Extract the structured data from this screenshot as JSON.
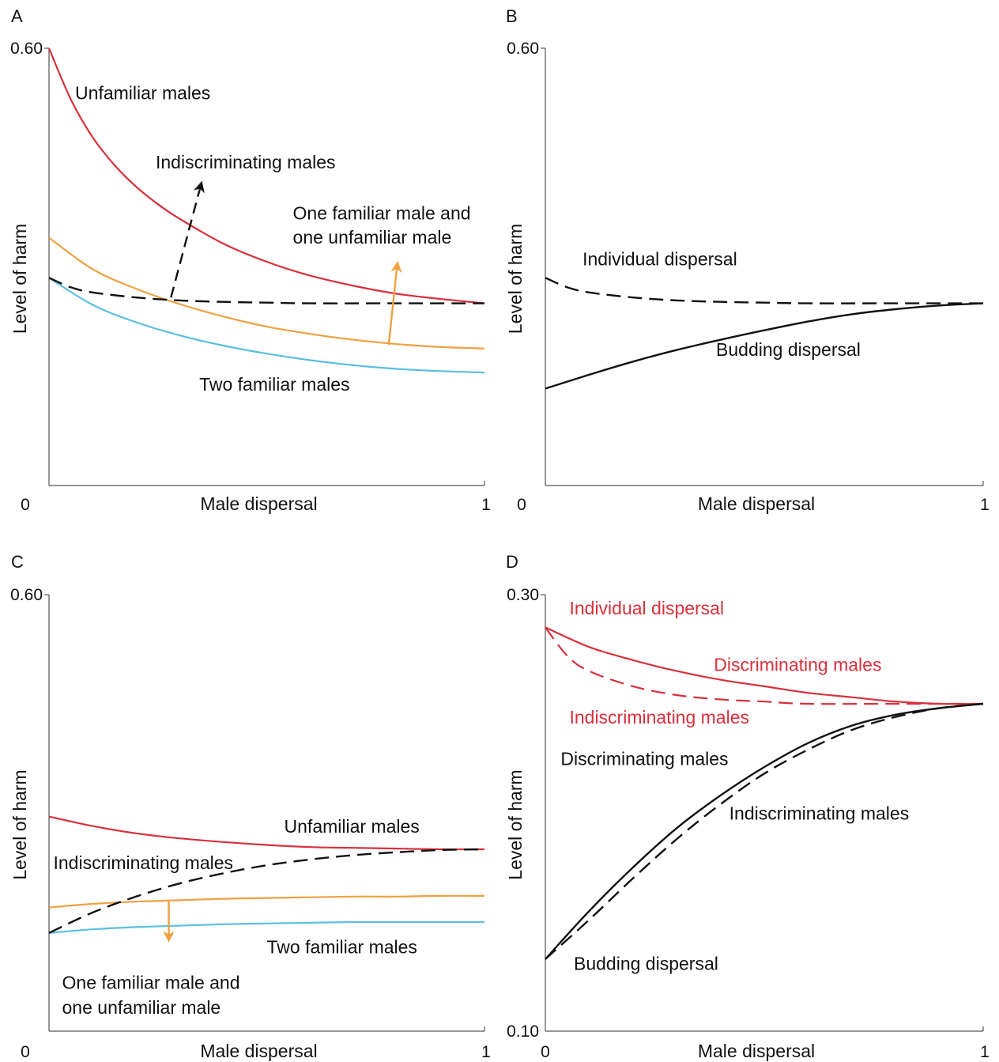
{
  "colors": {
    "red": "#d8303c",
    "orange": "#f0a040",
    "blue": "#5bbfe0",
    "black": "#111111",
    "axis": "#555555"
  },
  "chart_data": [
    {
      "panel": "A",
      "type": "line",
      "xlabel": "Male dispersal",
      "ylabel": "Level of harm",
      "xlim": [
        0,
        1
      ],
      "ylim": [
        0,
        0.6
      ],
      "x_tick_labels": [
        "0",
        "1"
      ],
      "y_tick_labels": [
        "0.60"
      ],
      "series": [
        {
          "color": "red",
          "dash": false,
          "x": [
            0,
            0.05,
            0.1,
            0.15,
            0.2,
            0.25,
            0.3,
            0.4,
            0.5,
            0.6,
            0.7,
            0.8,
            0.9,
            1.0
          ],
          "values": [
            0.6,
            0.53,
            0.478,
            0.44,
            0.41,
            0.386,
            0.366,
            0.332,
            0.307,
            0.288,
            0.274,
            0.263,
            0.256,
            0.25
          ]
        },
        {
          "color": "orange",
          "dash": false,
          "x": [
            0,
            0.1,
            0.2,
            0.3,
            0.4,
            0.5,
            0.6,
            0.7,
            0.8,
            0.9,
            1.0
          ],
          "values": [
            0.34,
            0.297,
            0.27,
            0.249,
            0.232,
            0.218,
            0.208,
            0.2,
            0.194,
            0.19,
            0.188
          ]
        },
        {
          "color": "blue",
          "dash": false,
          "x": [
            0,
            0.1,
            0.2,
            0.3,
            0.4,
            0.5,
            0.6,
            0.7,
            0.8,
            0.9,
            1.0
          ],
          "values": [
            0.285,
            0.248,
            0.224,
            0.206,
            0.192,
            0.181,
            0.172,
            0.165,
            0.16,
            0.157,
            0.155
          ]
        },
        {
          "color": "black",
          "dash": true,
          "x": [
            0,
            0.05,
            0.1,
            0.2,
            0.3,
            0.4,
            0.5,
            0.6,
            0.8,
            1.0
          ],
          "values": [
            0.285,
            0.272,
            0.265,
            0.258,
            0.254,
            0.252,
            0.251,
            0.25,
            0.25,
            0.25
          ]
        }
      ],
      "arrows": [
        {
          "color": "black",
          "dash": true,
          "from": [
            0.28,
            0.258
          ],
          "to": [
            0.35,
            0.415
          ]
        },
        {
          "color": "orange",
          "dash": false,
          "from": [
            0.78,
            0.193
          ],
          "to": [
            0.8,
            0.305
          ]
        }
      ],
      "annotations": [
        {
          "text": "Unfamiliar males",
          "color": "black",
          "x": 0.06,
          "y": 0.53
        },
        {
          "text": "Indiscriminating males",
          "color": "black",
          "x": 0.245,
          "y": 0.435
        },
        {
          "text": "One familiar male and",
          "color": "black",
          "x": 0.56,
          "y": 0.365
        },
        {
          "text": "one unfamiliar male",
          "color": "black",
          "x": 0.56,
          "y": 0.332
        },
        {
          "text": "Two familiar males",
          "color": "black",
          "x": 0.345,
          "y": 0.13
        }
      ]
    },
    {
      "panel": "B",
      "type": "line",
      "xlabel": "Male dispersal",
      "ylabel": "Level of harm",
      "xlim": [
        0,
        1
      ],
      "ylim": [
        0,
        0.6
      ],
      "x_tick_labels": [
        "0",
        "1"
      ],
      "y_tick_labels": [
        "0.60"
      ],
      "series": [
        {
          "color": "black",
          "dash": true,
          "x": [
            0,
            0.05,
            0.1,
            0.2,
            0.3,
            0.4,
            0.5,
            0.6,
            0.8,
            1.0
          ],
          "values": [
            0.285,
            0.272,
            0.265,
            0.258,
            0.254,
            0.252,
            0.251,
            0.25,
            0.25,
            0.25
          ]
        },
        {
          "color": "black",
          "dash": false,
          "x": [
            0,
            0.1,
            0.2,
            0.3,
            0.4,
            0.5,
            0.6,
            0.7,
            0.8,
            0.9,
            1.0
          ],
          "values": [
            0.133,
            0.152,
            0.17,
            0.186,
            0.2,
            0.213,
            0.225,
            0.235,
            0.242,
            0.247,
            0.25
          ]
        }
      ],
      "annotations": [
        {
          "text": "Individual dispersal",
          "color": "black",
          "x": 0.085,
          "y": 0.302
        },
        {
          "text": "Budding dispersal",
          "color": "black",
          "x": 0.39,
          "y": 0.178
        }
      ]
    },
    {
      "panel": "C",
      "type": "line",
      "xlabel": "Male dispersal",
      "ylabel": "Level of harm",
      "xlim": [
        0,
        1
      ],
      "ylim": [
        0,
        0.6
      ],
      "x_tick_labels": [
        "0",
        "1"
      ],
      "y_tick_labels": [
        "0.60"
      ],
      "series": [
        {
          "color": "red",
          "dash": false,
          "x": [
            0,
            0.1,
            0.2,
            0.3,
            0.4,
            0.5,
            0.6,
            0.7,
            0.8,
            0.9,
            1.0
          ],
          "values": [
            0.295,
            0.282,
            0.272,
            0.265,
            0.26,
            0.256,
            0.253,
            0.252,
            0.251,
            0.25,
            0.25
          ]
        },
        {
          "color": "orange",
          "dash": false,
          "x": [
            0,
            0.1,
            0.2,
            0.3,
            0.4,
            0.5,
            0.6,
            0.7,
            0.8,
            0.9,
            1.0
          ],
          "values": [
            0.17,
            0.175,
            0.178,
            0.18,
            0.182,
            0.183,
            0.184,
            0.185,
            0.185,
            0.186,
            0.186
          ]
        },
        {
          "color": "blue",
          "dash": false,
          "x": [
            0,
            0.1,
            0.2,
            0.3,
            0.4,
            0.5,
            0.6,
            0.7,
            0.8,
            0.9,
            1.0
          ],
          "values": [
            0.135,
            0.14,
            0.143,
            0.145,
            0.147,
            0.148,
            0.149,
            0.15,
            0.15,
            0.15,
            0.15
          ]
        },
        {
          "color": "black",
          "dash": true,
          "x": [
            0,
            0.1,
            0.2,
            0.3,
            0.4,
            0.5,
            0.6,
            0.7,
            0.8,
            0.9,
            1.0
          ],
          "values": [
            0.135,
            0.163,
            0.185,
            0.203,
            0.217,
            0.228,
            0.236,
            0.242,
            0.246,
            0.249,
            0.25
          ]
        }
      ],
      "arrows": [
        {
          "color": "orange",
          "dash": false,
          "from": [
            0.275,
            0.18
          ],
          "to": [
            0.275,
            0.125
          ]
        }
      ],
      "annotations": [
        {
          "text": "Unfamiliar males",
          "color": "black",
          "x": 0.54,
          "y": 0.273
        },
        {
          "text": "Indiscriminating males",
          "color": "black",
          "x": 0.01,
          "y": 0.223
        },
        {
          "text": "Two familiar males",
          "color": "black",
          "x": 0.5,
          "y": 0.107
        },
        {
          "text": "One familiar male and",
          "color": "black",
          "x": 0.03,
          "y": 0.058
        },
        {
          "text": "one unfamiliar male",
          "color": "black",
          "x": 0.03,
          "y": 0.024
        }
      ]
    },
    {
      "panel": "D",
      "type": "line",
      "xlabel": "Male dispersal",
      "ylabel": "Level of harm",
      "xlim": [
        0,
        1
      ],
      "ylim": [
        0.1,
        0.3
      ],
      "x_tick_labels": [
        "0",
        "1"
      ],
      "y_tick_labels": [
        "0.30",
        "0.10"
      ],
      "series": [
        {
          "color": "red",
          "dash": false,
          "x": [
            0,
            0.1,
            0.2,
            0.3,
            0.4,
            0.5,
            0.6,
            0.7,
            0.8,
            0.9,
            1.0
          ],
          "values": [
            0.285,
            0.276,
            0.27,
            0.265,
            0.261,
            0.258,
            0.255,
            0.253,
            0.251,
            0.25,
            0.25
          ]
        },
        {
          "color": "red",
          "dash": true,
          "x": [
            0,
            0.05,
            0.1,
            0.2,
            0.3,
            0.4,
            0.5,
            0.6,
            0.8,
            1.0
          ],
          "values": [
            0.285,
            0.272,
            0.265,
            0.258,
            0.254,
            0.252,
            0.251,
            0.25,
            0.25,
            0.25
          ]
        },
        {
          "color": "black",
          "dash": false,
          "x": [
            0,
            0.1,
            0.2,
            0.3,
            0.4,
            0.5,
            0.6,
            0.7,
            0.8,
            0.9,
            1.0
          ],
          "values": [
            0.133,
            0.155,
            0.175,
            0.193,
            0.208,
            0.221,
            0.232,
            0.24,
            0.245,
            0.248,
            0.25
          ]
        },
        {
          "color": "black",
          "dash": true,
          "x": [
            0,
            0.1,
            0.2,
            0.3,
            0.4,
            0.5,
            0.6,
            0.7,
            0.8,
            0.9,
            1.0
          ],
          "values": [
            0.133,
            0.151,
            0.17,
            0.188,
            0.204,
            0.218,
            0.229,
            0.238,
            0.244,
            0.248,
            0.25
          ]
        }
      ],
      "annotations": [
        {
          "text": "Individual dispersal",
          "color": "red",
          "x": 0.055,
          "y": 0.291
        },
        {
          "text": "Discriminating males",
          "color": "red",
          "x": 0.385,
          "y": 0.265
        },
        {
          "text": "Indiscriminating males",
          "color": "red",
          "x": 0.055,
          "y": 0.241
        },
        {
          "text": "Discriminating males",
          "color": "black",
          "x": 0.035,
          "y": 0.222
        },
        {
          "text": "Indiscriminating males",
          "color": "black",
          "x": 0.42,
          "y": 0.197
        },
        {
          "text": "Budding dispersal",
          "color": "black",
          "x": 0.065,
          "y": 0.128
        }
      ]
    }
  ]
}
